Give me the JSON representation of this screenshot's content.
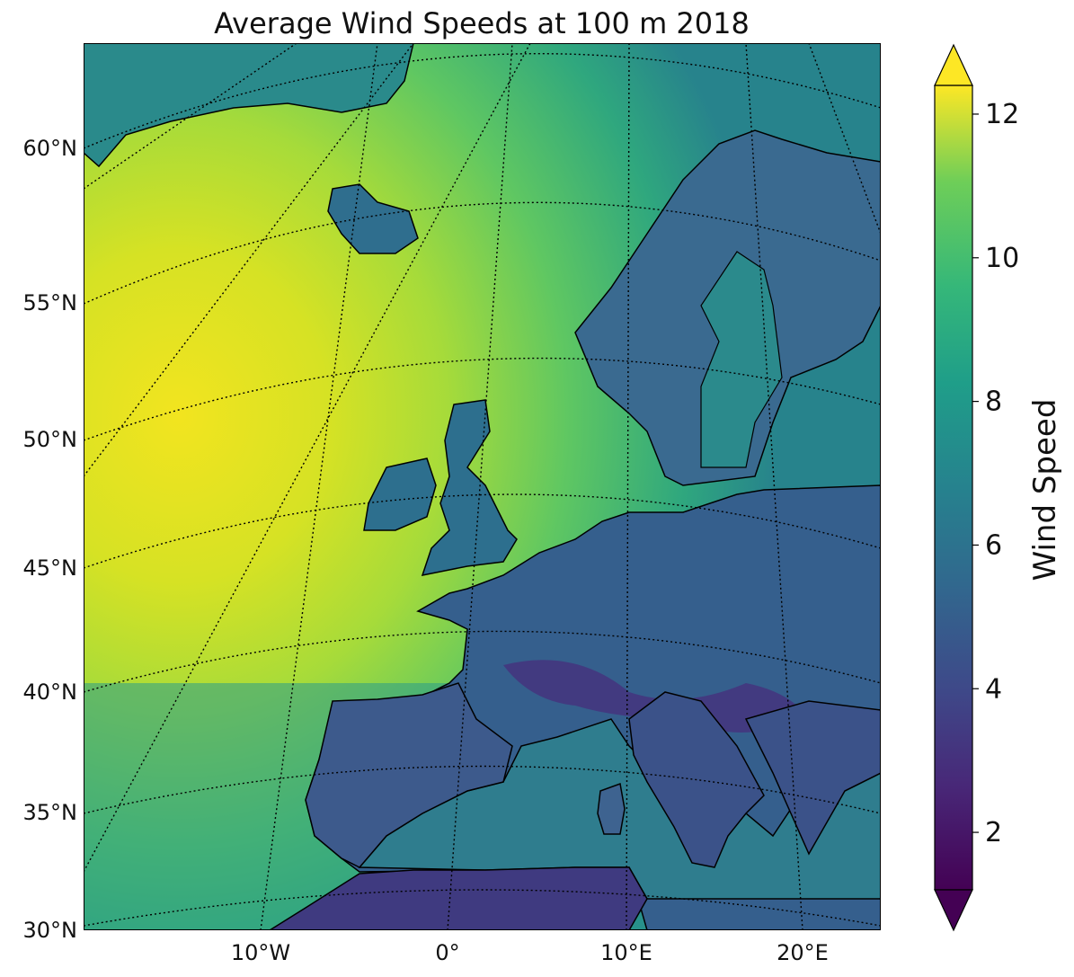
{
  "title": "Average Wind Speeds at 100 m 2018",
  "map": {
    "lat_labels": [
      "60°N",
      "55°N",
      "50°N",
      "45°N",
      "40°N",
      "35°N",
      "30°N"
    ],
    "lon_labels": [
      "10°W",
      "0°",
      "10°E",
      "20°E"
    ],
    "projection": "conic",
    "gridlines": "dotted",
    "coastlines": true
  },
  "colorbar": {
    "label": "Wind Speed",
    "ticks": [
      "2",
      "4",
      "6",
      "8",
      "10",
      "12"
    ],
    "range": [
      1.2,
      12.4
    ],
    "extend": "both",
    "colormap": "viridis",
    "colors": [
      "#440154",
      "#3b528b",
      "#21908d",
      "#5dc963",
      "#fde725"
    ]
  }
}
